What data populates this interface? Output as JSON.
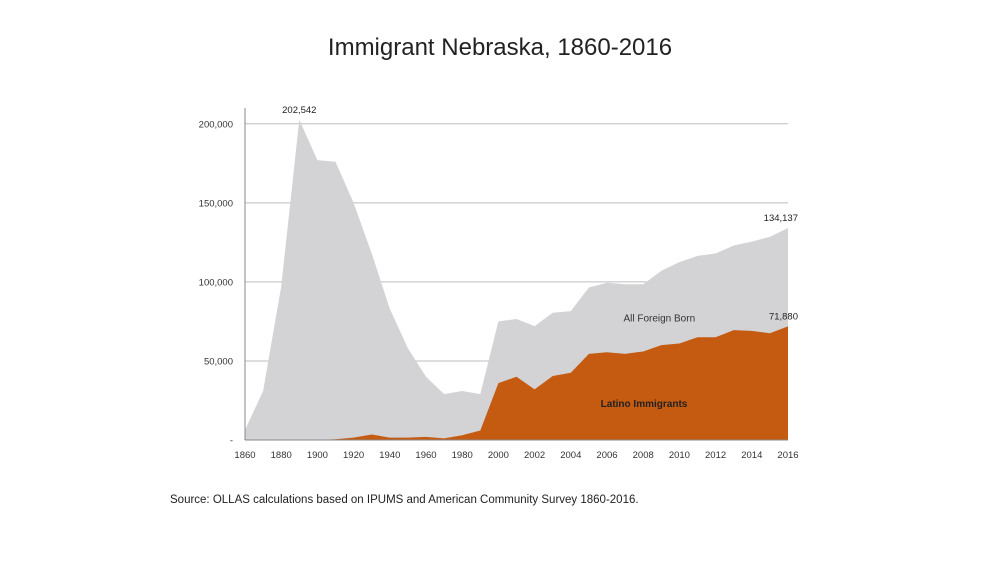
{
  "title": "Immigrant Nebraska, 1860-2016",
  "source": "Source: OLLAS calculations based on IPUMS and American Community Survey 1860-2016.",
  "chart_data": {
    "type": "area",
    "title": "Immigrant Nebraska, 1860-2016",
    "colors": {
      "all_foreign_born": "#d3d2d4",
      "latino": "#c55a11",
      "grid": "#bdbdbd"
    },
    "x_tick_labels": [
      "1860",
      "1880",
      "1900",
      "1920",
      "1940",
      "1960",
      "1980",
      "2000",
      "2002",
      "2004",
      "2006",
      "2008",
      "2010",
      "2012",
      "2014",
      "2016"
    ],
    "y_tick_labels": [
      "-",
      "50,000",
      "100,000",
      "150,000",
      "200,000"
    ],
    "ylim": [
      0,
      210000
    ],
    "grid": "horizontal",
    "x": [
      "1860",
      "1870",
      "1880",
      "1890",
      "1900",
      "1910",
      "1920",
      "1930",
      "1940",
      "1950",
      "1960",
      "1970",
      "1980",
      "1990",
      "2000",
      "2001",
      "2002",
      "2003",
      "2004",
      "2005",
      "2006",
      "2007",
      "2008",
      "2009",
      "2010",
      "2011",
      "2012",
      "2013",
      "2014",
      "2015",
      "2016"
    ],
    "series": [
      {
        "name": "All Foreign Born",
        "values": [
          6300,
          31000,
          97000,
          202542,
          177000,
          176000,
          150000,
          118000,
          83000,
          58000,
          40000,
          29000,
          31000,
          29000,
          75000,
          76500,
          72000,
          80500,
          81500,
          96500,
          99500,
          98500,
          98500,
          107000,
          112500,
          116500,
          118000,
          123000,
          125500,
          128500,
          134137
        ]
      },
      {
        "name": "Latino Immigrants",
        "values": [
          0,
          0,
          0,
          0,
          0,
          500,
          1500,
          3500,
          1500,
          1500,
          2000,
          1000,
          3000,
          6000,
          36000,
          40000,
          32000,
          40500,
          42500,
          54500,
          55500,
          54500,
          56000,
          60000,
          61000,
          65000,
          65000,
          69500,
          69000,
          67500,
          71880
        ]
      }
    ],
    "data_labels": [
      {
        "text": "202,542",
        "x": "1890",
        "value": 202542
      },
      {
        "text": "134,137",
        "x": "2016",
        "value": 134137
      },
      {
        "text": "71,880",
        "x": "2016",
        "value": 71880
      }
    ]
  }
}
